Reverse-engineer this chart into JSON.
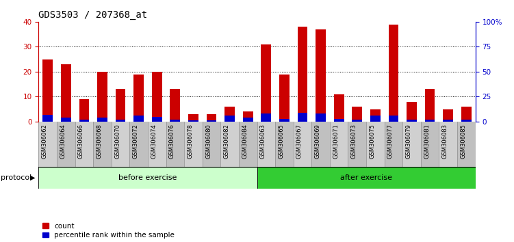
{
  "title": "GDS3503 / 207368_at",
  "categories": [
    "GSM306062",
    "GSM306064",
    "GSM306066",
    "GSM306068",
    "GSM306070",
    "GSM306072",
    "GSM306074",
    "GSM306076",
    "GSM306078",
    "GSM306080",
    "GSM306082",
    "GSM306084",
    "GSM306063",
    "GSM306065",
    "GSM306067",
    "GSM306069",
    "GSM306071",
    "GSM306073",
    "GSM306075",
    "GSM306077",
    "GSM306079",
    "GSM306081",
    "GSM306083",
    "GSM306085"
  ],
  "count_values": [
    25,
    23,
    9,
    20,
    13,
    19,
    20,
    13,
    3,
    3,
    6,
    4,
    31,
    19,
    38,
    37,
    11,
    6,
    5,
    39,
    8,
    13,
    5,
    6
  ],
  "percentile_values": [
    7,
    4,
    2,
    4,
    2,
    6,
    5,
    2,
    1,
    1,
    6,
    4,
    8,
    3,
    9,
    8,
    3,
    2,
    6,
    6,
    2,
    2,
    2,
    2
  ],
  "before_exercise_count": 12,
  "after_exercise_count": 12,
  "bar_color_red": "#CC0000",
  "bar_color_blue": "#0000CC",
  "before_bg": "#CCFFCC",
  "after_bg": "#33CC33",
  "protocol_label": "protocol",
  "before_label": "before exercise",
  "after_label": "after exercise",
  "legend_count": "count",
  "legend_percentile": "percentile rank within the sample",
  "ylim_left": [
    0,
    40
  ],
  "ylim_right": [
    0,
    100
  ],
  "yticks_left": [
    0,
    10,
    20,
    30,
    40
  ],
  "yticks_right": [
    0,
    25,
    50,
    75,
    100
  ],
  "ytick_labels_right": [
    "0",
    "25",
    "50",
    "75",
    "100%"
  ],
  "left_color": "#CC0000",
  "right_color": "#0000CC",
  "grid_color": "black",
  "bg_plot": "#FFFFFF",
  "title_fontsize": 10,
  "tick_fontsize": 7.5,
  "label_fontsize": 8,
  "protocol_fontsize": 8,
  "xtick_fontsize": 6
}
